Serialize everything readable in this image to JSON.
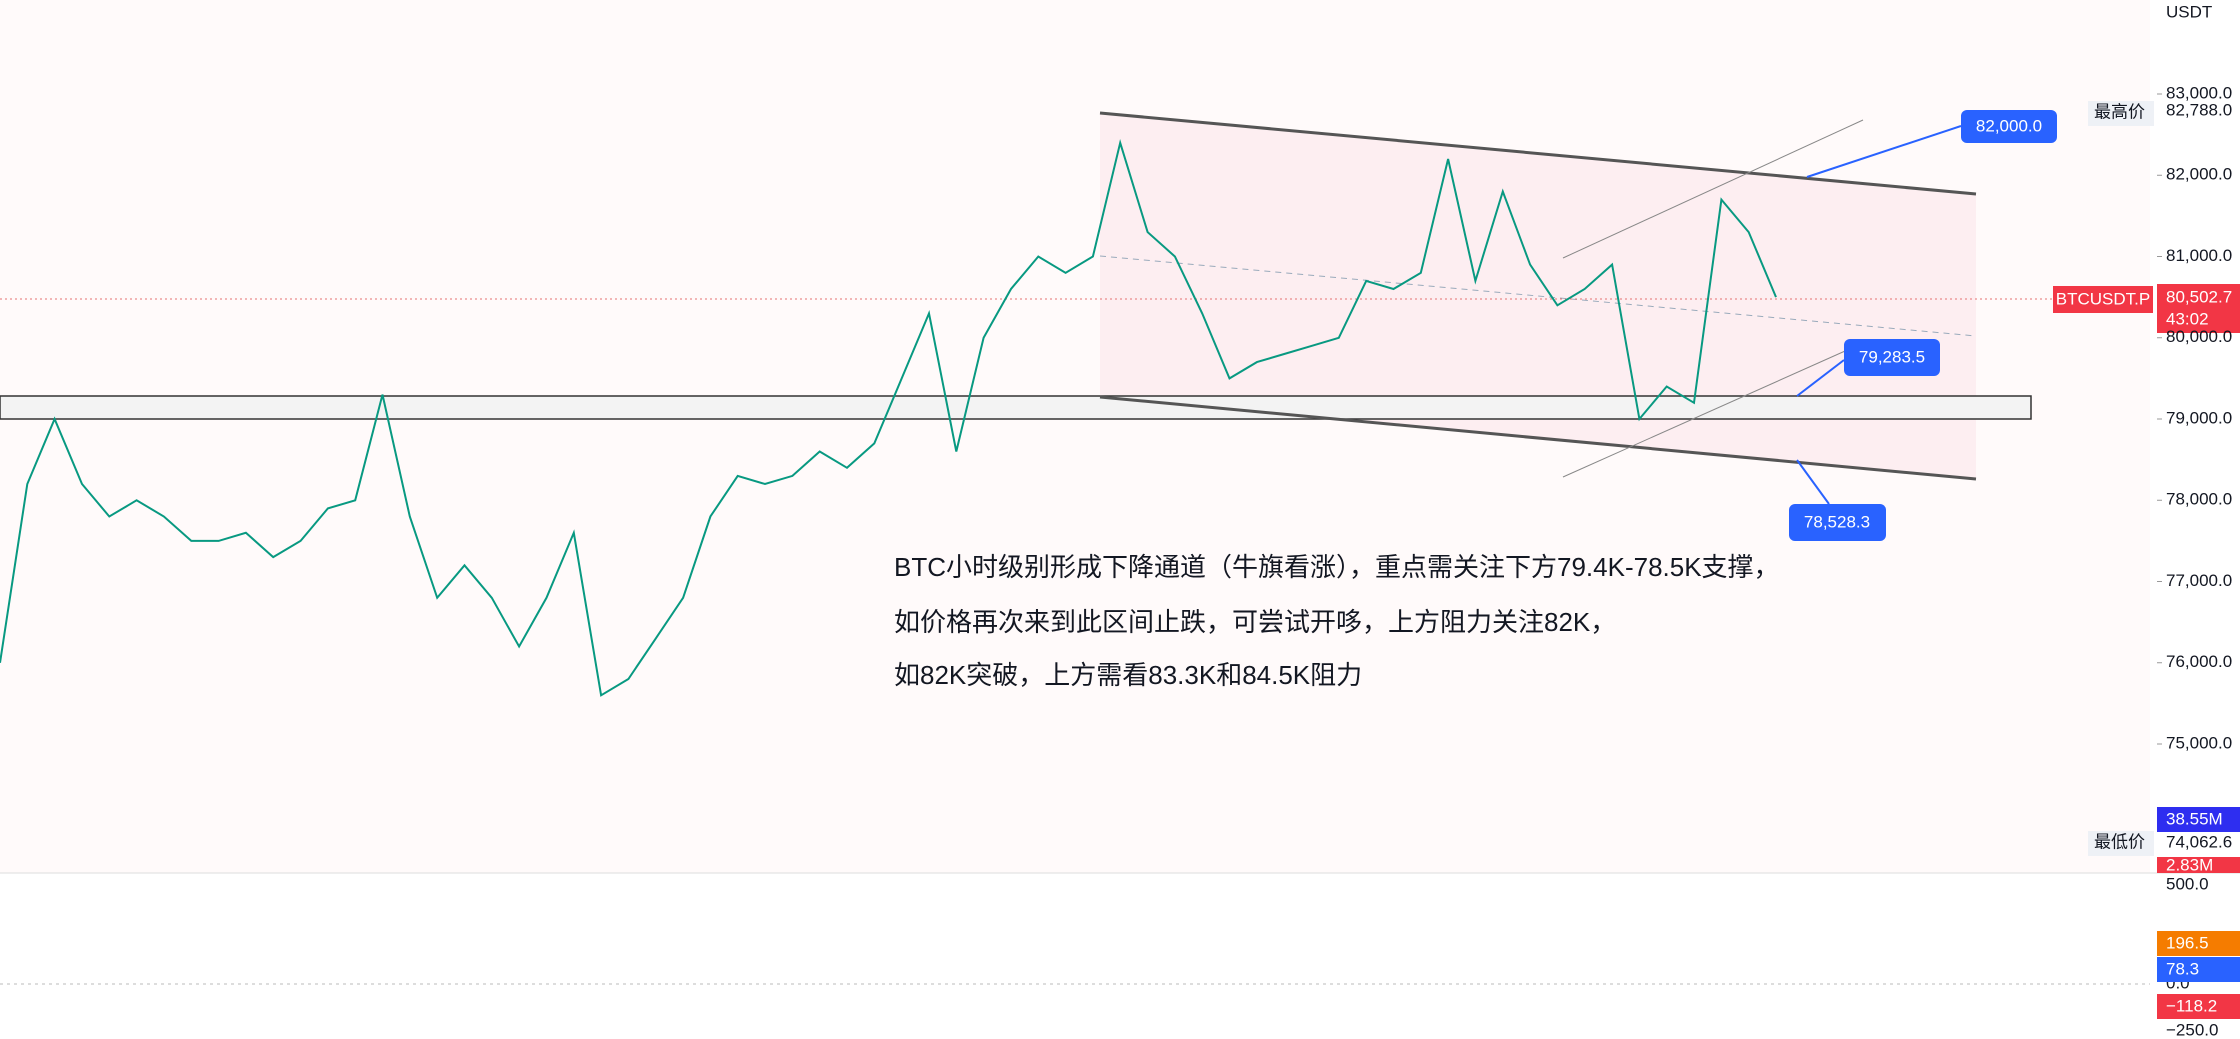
{
  "header": {
    "currency": "USDT"
  },
  "price_axis": {
    "ticks": [
      {
        "value": 83000,
        "label": "83,000.0"
      },
      {
        "value": 82000,
        "label": "82,000.0"
      },
      {
        "value": 81000,
        "label": "81,000.0"
      },
      {
        "value": 80000,
        "label": "80,000.0"
      },
      {
        "value": 79000,
        "label": "79,000.0"
      },
      {
        "value": 78000,
        "label": "78,000.0"
      },
      {
        "value": 77000,
        "label": "77,000.0"
      },
      {
        "value": 76000,
        "label": "76,000.0"
      },
      {
        "value": 75000,
        "label": "75,000.0"
      }
    ],
    "high": {
      "label": "最高价",
      "value": {
        "value": 82788,
        "label": "82,788.0"
      }
    },
    "low": {
      "label": "最低价",
      "value": {
        "value": 74062.6,
        "label": "74,062.6"
      }
    },
    "last": {
      "symbol": "BTCUSDT.P",
      "value": {
        "value": 80502.7,
        "label": "80,502.7"
      },
      "countdown": "43:02"
    }
  },
  "price": {
    "closes": [
      76000,
      78200,
      79000,
      78200,
      77800,
      78000,
      77800,
      77500,
      77500,
      77600,
      77300,
      77500,
      77900,
      78000,
      79300,
      77800,
      76800,
      77200,
      76800,
      76200,
      76800,
      77600,
      75600,
      75800,
      76300,
      76800,
      77800,
      78300,
      78200,
      78300,
      78600,
      78400,
      78700,
      79500,
      80300,
      78600,
      80000,
      80600,
      81000,
      80800,
      81000,
      82400,
      81300,
      81000,
      80300,
      79500,
      79700,
      79800,
      79900,
      80000,
      80700,
      80600,
      80800,
      82200,
      80700,
      81800,
      80900,
      80400,
      80600,
      80900,
      79000,
      79400,
      79200,
      81700,
      81300,
      80500
    ]
  },
  "volume_axis": {
    "ma": "38.55M",
    "last": "2.83M"
  },
  "macd_axis": {
    "ticks": [
      "500.0",
      "0.0",
      "−250.0"
    ],
    "signal": "196.5",
    "macd": "78.3",
    "histogram": "−118.2"
  },
  "annotations": [
    {
      "label": {
        "value": 82000,
        "label": "82,000.0"
      }
    },
    {
      "label": {
        "value": 79283.5,
        "label": "79,283.5"
      }
    },
    {
      "label": {
        "value": 78528.3,
        "label": "78,528.3"
      }
    }
  ],
  "note": [
    "BTC小时级别形成下降通道（牛旗看涨），重点需关注下方79.4K-78.5K支撑，",
    "如价格再次来到此区间止跌，可尝试开哆，上方阻力关注82K，",
    "如82K突破，上方需看83.3K和84.5K阻力"
  ]
}
